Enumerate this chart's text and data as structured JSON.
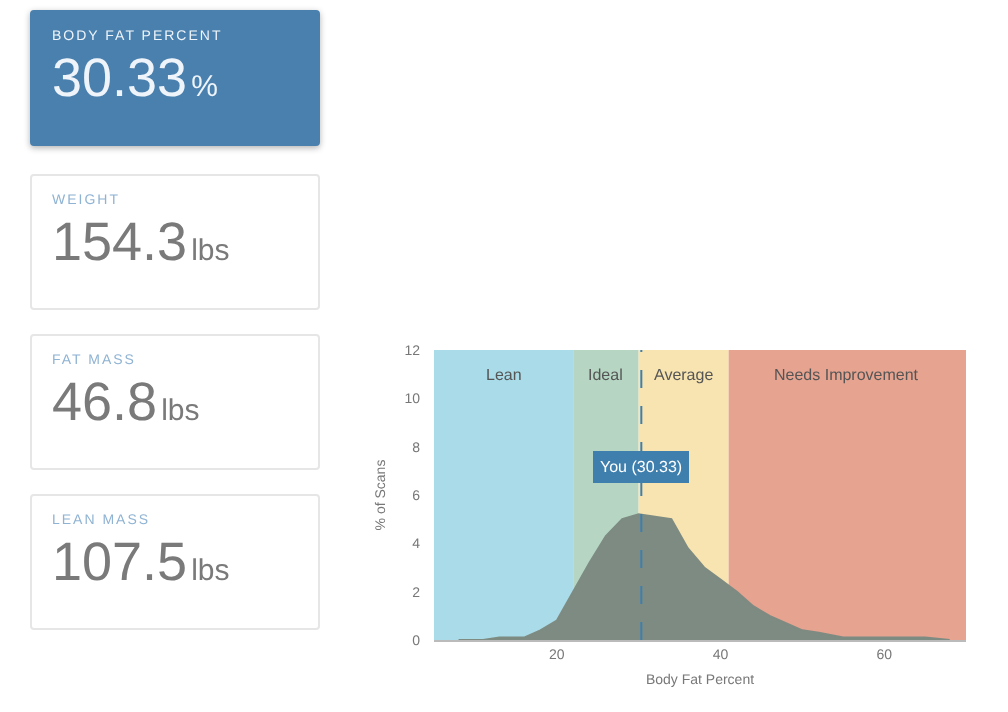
{
  "chart_data": [
    {
      "type": "other",
      "title": "BODY FAT PERCENT",
      "annotations": [
        "30.33",
        "%"
      ]
    },
    {
      "type": "other",
      "title": "WEIGHT",
      "annotations": [
        "154.3",
        "lbs"
      ]
    },
    {
      "type": "other",
      "title": "FAT MASS",
      "annotations": [
        "46.8",
        "lbs"
      ]
    },
    {
      "type": "other",
      "title": "LEAN MASS",
      "annotations": [
        "107.5",
        "lbs"
      ]
    },
    {
      "type": "area",
      "xlabel": "Body Fat Percent",
      "ylabel": "% of Scans",
      "xlim": [
        5,
        70
      ],
      "xticks": [
        20,
        40,
        60
      ],
      "ylim": [
        0,
        12
      ],
      "yticks": [
        0,
        2,
        4,
        6,
        8,
        10,
        12
      ],
      "grid": false,
      "legend": false,
      "series": [
        {
          "color": "#7d8b82",
          "x": [
            8,
            11,
            13,
            14,
            15,
            16,
            18,
            20,
            22,
            24,
            26,
            28,
            30,
            32,
            34,
            36,
            38,
            40,
            42,
            44,
            46,
            48,
            50,
            52,
            55,
            58,
            62,
            65,
            68
          ],
          "values": [
            0,
            0,
            0.1,
            0.1,
            0.1,
            0.1,
            0.4,
            0.8,
            2,
            3.2,
            4.3,
            5,
            5.2,
            5.1,
            5,
            3.8,
            3,
            2.5,
            2,
            1.4,
            1,
            0.7,
            0.4,
            0.3,
            0.1,
            0.1,
            0.1,
            0.1,
            0
          ]
        }
      ],
      "bands": [
        {
          "axis": "x",
          "from": 5,
          "to": 22,
          "label": "Lean",
          "color": "#a9dbe8"
        },
        {
          "axis": "x",
          "from": 22,
          "to": 30,
          "label": "Ideal",
          "color": "#b6d6c3"
        },
        {
          "axis": "x",
          "from": 30,
          "to": 41,
          "label": "Average",
          "color": "#f7e4b0"
        },
        {
          "axis": "x",
          "from": 41,
          "to": 70,
          "label": "Needs Improvement",
          "color": "#e6a390"
        }
      ],
      "ref_lines": [
        {
          "axis": "x",
          "value": 30.33,
          "label": "You (30.33)",
          "color": "#3f7fae",
          "line_style": "dashed"
        }
      ]
    }
  ]
}
